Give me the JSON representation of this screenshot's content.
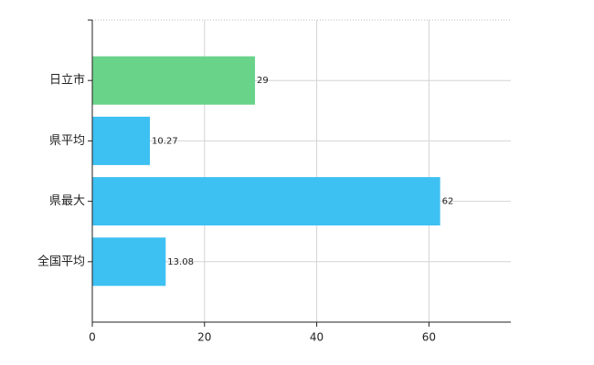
{
  "chart_data": {
    "type": "bar",
    "orientation": "horizontal",
    "categories": [
      "日立市",
      "県平均",
      "県最大",
      "全国平均"
    ],
    "values": [
      29,
      10.27,
      62,
      13.08
    ],
    "colors": [
      "#6ad38a",
      "#3dc0f2",
      "#3dc0f2",
      "#3dc0f2"
    ],
    "xlim": [
      0,
      74.6
    ],
    "xticks": [
      0,
      20,
      40,
      60
    ],
    "grid": true
  }
}
